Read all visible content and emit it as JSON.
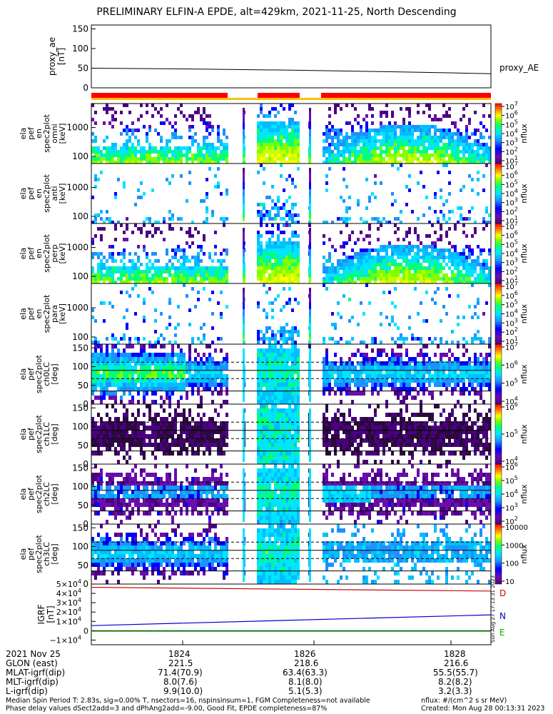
{
  "title": "PRELIMINARY ELFIN-A EPDE, alt=429km, 2021-11-25, North Descending",
  "chart_data": [
    {
      "type": "line",
      "ylabel": [
        "proxy_ae",
        "[nT]"
      ],
      "yticks": [
        "150",
        "100",
        "50",
        "0"
      ],
      "ylim": [
        0,
        160
      ],
      "series": [
        {
          "name": "proxy_AE",
          "x": [
            0,
            0.25,
            0.5,
            0.75,
            1.0
          ],
          "values": [
            50,
            48,
            45,
            41,
            36
          ]
        }
      ]
    },
    {
      "type": "heatmap",
      "ylabel": [
        "ela",
        "pef",
        "en",
        "spec2plot",
        "omni",
        "[keV]"
      ],
      "yticks": [
        "1000",
        "100"
      ],
      "colorbar": {
        "label": "nflux",
        "ticks": [
          "10^7",
          "10^6",
          "10^5",
          "10^4",
          "10^3",
          "10^2",
          "10^1"
        ]
      }
    },
    {
      "type": "heatmap",
      "ylabel": [
        "ela",
        "pef",
        "en",
        "spec2plot",
        "anti",
        "[keV]"
      ],
      "yticks": [
        "1000",
        "100"
      ],
      "colorbar": {
        "label": "nflux",
        "ticks": [
          "10^7",
          "10^6",
          "10^5",
          "10^4",
          "10^3",
          "10^2",
          "10^1"
        ]
      }
    },
    {
      "type": "heatmap",
      "ylabel": [
        "ela",
        "pef",
        "en",
        "spec2plot",
        "perp",
        "[keV]"
      ],
      "yticks": [
        "1000",
        "100"
      ],
      "colorbar": {
        "label": "nflux",
        "ticks": [
          "10^7",
          "10^6",
          "10^5",
          "10^4",
          "10^3",
          "10^2",
          "10^1"
        ]
      }
    },
    {
      "type": "heatmap",
      "ylabel": [
        "ela",
        "pef",
        "en",
        "spec2plot",
        "para",
        "[keV]"
      ],
      "yticks": [
        "1000",
        "100"
      ],
      "colorbar": {
        "label": "nflux",
        "ticks": [
          "10^7",
          "10^6",
          "10^5",
          "10^4",
          "10^3",
          "10^2",
          "10^1"
        ]
      }
    },
    {
      "type": "heatmap",
      "ylabel": [
        "ela",
        "pef",
        "spec2plot",
        "ch0LC",
        "[deg]"
      ],
      "yticks": [
        "150",
        "100",
        "50",
        "0"
      ],
      "colorbar": {
        "label": "nflux",
        "ticks": [
          "10^7",
          "10^6",
          "10^5",
          "10^4"
        ]
      }
    },
    {
      "type": "heatmap",
      "ylabel": [
        "ela",
        "pef",
        "spec2plot",
        "ch1LC",
        "[deg]"
      ],
      "yticks": [
        "150",
        "100",
        "50",
        "0"
      ],
      "colorbar": {
        "label": "nflux",
        "ticks": [
          "10^6",
          "10^5",
          "10^4"
        ]
      }
    },
    {
      "type": "heatmap",
      "ylabel": [
        "ela",
        "pef",
        "spec2plot",
        "ch2LC",
        "[deg]"
      ],
      "yticks": [
        "150",
        "100",
        "50",
        "0"
      ],
      "colorbar": {
        "label": "nflux",
        "ticks": [
          "10^6",
          "10^5",
          "10^4",
          "10^3",
          "10^2"
        ]
      }
    },
    {
      "type": "heatmap",
      "ylabel": [
        "ela",
        "pef",
        "spec2plot",
        "ch3LC",
        "[deg]"
      ],
      "yticks": [
        "150",
        "100",
        "50",
        "0"
      ],
      "colorbar": {
        "label": "nflux",
        "ticks": [
          "10000",
          "1000",
          "100",
          "10"
        ]
      }
    },
    {
      "type": "line",
      "ylabel": [
        "IGRF",
        "[nT]"
      ],
      "yticks": [
        "5×10^4",
        "4×10^4",
        "3×10^4",
        "2×10^4",
        "1×10^4",
        "0",
        "−1×10^4"
      ],
      "ylim": [
        -15000,
        50000
      ],
      "series": [
        {
          "name": "D",
          "color": "#cc0000",
          "x": [
            0,
            1
          ],
          "values": [
            46500,
            42500
          ]
        },
        {
          "name": "N",
          "color": "#0000cc",
          "x": [
            0,
            1
          ],
          "values": [
            5500,
            17000
          ]
        },
        {
          "name": "E",
          "color": "#00aa00",
          "x": [
            0,
            1
          ],
          "values": [
            -500,
            -500
          ]
        }
      ]
    }
  ],
  "xticks": [
    "1824",
    "1826",
    "1828"
  ],
  "orbit_rows": [
    {
      "label": "2021 Nov 25",
      "values": [
        "1824",
        "1826",
        "1828"
      ]
    },
    {
      "label": "GLON (east)",
      "values": [
        "221.5",
        "218.6",
        "216.6"
      ]
    },
    {
      "label": "MLAT-igrf(dip)",
      "values": [
        "71.4(70.9)",
        "63.4(63.3)",
        "55.5(55.7)"
      ]
    },
    {
      "label": "MLT-igrf(dip)",
      "values": [
        "8.0(7.6)",
        "8.1(8.0)",
        "8.2(8.2)"
      ]
    },
    {
      "label": "L-igrf(dip)",
      "values": [
        "9.9(10.0)",
        "5.1(5.3)",
        "3.2(3.3)"
      ]
    }
  ],
  "footer": {
    "left1": "Median Spin Period T: 2.83s, sig=0.00% T, nsectors=16, nspinsinsum=1, FGM Completeness=not available",
    "left2": "Phase delay values dSect2add=3 and dPhAng2add=-9.00, Good Fit, EPDE completeness=87%",
    "right1": "nflux: #/(cm^2 s sr MeV)",
    "right2": "Created: Mon Aug 28 00:13:31 2023",
    "side": "Sun Aug 27 17:13:31 2023"
  },
  "colors": {
    "bar_red": "#ff0000",
    "bar_yellow": "#ffd000",
    "bar_line": "#ffc000"
  }
}
